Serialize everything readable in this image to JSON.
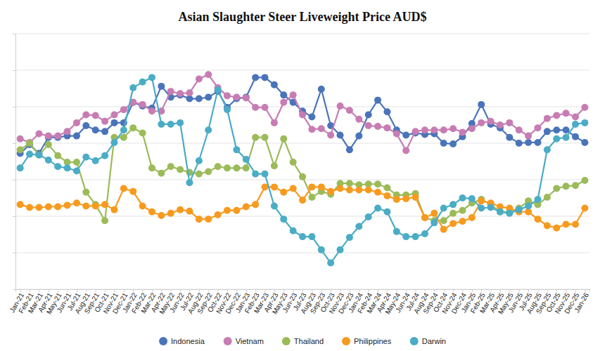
{
  "chart_data": {
    "type": "line",
    "title": "Asian Slaughter Steer Liveweight Price AUD$",
    "categories": [
      "Jan-21",
      "Feb-21",
      "Mar-21",
      "Apr-21",
      "May-21",
      "Jun-21",
      "Jul-21",
      "Aug-21",
      "Sep-21",
      "Oct-21",
      "Nov-21",
      "Dec-21",
      "Jan-22",
      "Feb-22",
      "Mar-22",
      "Apr-22",
      "May-22",
      "Jun-22",
      "Jul-22",
      "Aug-22",
      "Sep-22",
      "Oct-22",
      "Nov-22",
      "Dec-22",
      "Jan-23",
      "Feb-23",
      "Mar-23",
      "Apr-23",
      "May-23",
      "Jun-23",
      "Jul-23",
      "Aug-23",
      "Sep-23",
      "Oct-23",
      "Nov-23",
      "Dec-23",
      "Jan-24",
      "Feb-24",
      "Mar-24",
      "Apr-24",
      "May-24",
      "Jun-24",
      "Jul-24",
      "Aug-24",
      "Sep-24",
      "Oct-24",
      "Nov-24",
      "Dec-24",
      "Jan-25",
      "Feb-25",
      "Mar-25",
      "Apr-25",
      "May-25",
      "Jun-25",
      "Jul-25",
      "Aug-25",
      "Sep-25",
      "Oct-25",
      "Nov-25",
      "Dec-25",
      "Jan-26"
    ],
    "series": [
      {
        "name": "Indonesia",
        "color": "#4a74b9",
        "values": [
          3.86,
          3.98,
          3.86,
          4.08,
          4.08,
          4.1,
          4.1,
          4.24,
          4.18,
          4.16,
          4.28,
          4.28,
          4.56,
          4.51,
          4.48,
          4.78,
          4.63,
          4.66,
          4.61,
          4.61,
          4.63,
          4.71,
          4.49,
          4.61,
          4.63,
          4.9,
          4.9,
          4.8,
          4.66,
          4.56,
          4.44,
          4.36,
          4.74,
          4.24,
          4.11,
          3.91,
          4.1,
          4.39,
          4.59,
          4.43,
          4.18,
          4.11,
          4.14,
          4.12,
          4.13,
          4.0,
          3.99,
          4.09,
          4.27,
          4.53,
          4.26,
          4.21,
          4.08,
          4.0,
          4.01,
          4.01,
          4.16,
          4.18,
          4.18,
          4.09,
          4.01
        ]
      },
      {
        "name": "Vietnam",
        "color": "#c77cb3",
        "values": [
          4.06,
          4.01,
          4.13,
          4.1,
          4.1,
          4.16,
          4.28,
          4.39,
          4.38,
          4.3,
          4.39,
          4.46,
          4.56,
          4.53,
          4.44,
          4.44,
          4.71,
          4.68,
          4.69,
          4.88,
          4.94,
          4.76,
          4.65,
          4.63,
          4.62,
          4.49,
          4.49,
          4.28,
          4.56,
          4.66,
          4.39,
          4.19,
          4.2,
          4.11,
          4.51,
          4.45,
          4.33,
          4.24,
          4.23,
          4.21,
          4.13,
          3.9,
          4.16,
          4.18,
          4.18,
          4.18,
          4.2,
          4.15,
          4.2,
          4.28,
          4.3,
          4.25,
          4.28,
          4.18,
          4.1,
          4.21,
          4.34,
          4.38,
          4.41,
          4.36,
          4.49
        ]
      },
      {
        "name": "Thailand",
        "color": "#9bbb59",
        "values": [
          3.91,
          4.0,
          3.84,
          3.98,
          3.83,
          3.74,
          3.74,
          3.33,
          3.16,
          2.94,
          4.08,
          4.08,
          4.21,
          4.14,
          3.66,
          3.59,
          3.68,
          3.64,
          3.6,
          3.58,
          3.61,
          3.68,
          3.66,
          3.66,
          3.66,
          4.08,
          4.08,
          3.69,
          4.06,
          3.74,
          3.54,
          3.26,
          3.34,
          3.3,
          3.45,
          3.45,
          3.43,
          3.44,
          3.44,
          3.39,
          3.29,
          3.29,
          3.31,
          2.98,
          2.94,
          2.94,
          3.04,
          3.08,
          3.18,
          3.23,
          3.16,
          3.06,
          3.06,
          3.11,
          3.21,
          3.16,
          3.26,
          3.38,
          3.41,
          3.42,
          3.49
        ]
      },
      {
        "name": "Philippines",
        "color": "#f79a1e",
        "values": [
          3.16,
          3.12,
          3.12,
          3.13,
          3.13,
          3.15,
          3.18,
          3.14,
          3.14,
          3.16,
          3.09,
          3.38,
          3.34,
          3.14,
          3.06,
          3.01,
          3.04,
          3.09,
          3.07,
          2.96,
          2.96,
          3.02,
          3.08,
          3.08,
          3.13,
          3.16,
          3.4,
          3.4,
          3.33,
          3.38,
          3.22,
          3.4,
          3.4,
          3.34,
          3.38,
          3.36,
          3.36,
          3.36,
          3.33,
          3.28,
          3.23,
          3.24,
          3.26,
          2.98,
          3.04,
          2.82,
          2.9,
          2.93,
          2.98,
          3.21,
          3.18,
          3.13,
          3.11,
          3.06,
          3.06,
          2.96,
          2.87,
          2.84,
          2.89,
          2.89,
          3.11
        ]
      },
      {
        "name": "Darwin",
        "color": "#4bacc6",
        "values": [
          3.66,
          3.85,
          3.84,
          3.77,
          3.68,
          3.66,
          3.62,
          3.81,
          3.76,
          3.83,
          4.01,
          4.18,
          4.76,
          4.84,
          4.9,
          4.26,
          4.26,
          4.28,
          3.46,
          3.76,
          4.18,
          4.73,
          4.46,
          3.91,
          3.78,
          3.58,
          3.58,
          3.14,
          2.96,
          2.8,
          2.72,
          2.72,
          2.54,
          2.36,
          2.54,
          2.71,
          2.86,
          2.99,
          3.11,
          3.06,
          2.79,
          2.72,
          2.72,
          2.76,
          2.91,
          3.11,
          3.16,
          3.25,
          3.24,
          3.11,
          3.12,
          3.06,
          3.04,
          3.09,
          3.14,
          3.23,
          3.91,
          4.06,
          4.08,
          4.26,
          4.28
        ]
      }
    ],
    "ylim": [
      2.0,
      5.5
    ],
    "yticks": [
      2.0,
      2.5,
      3.0,
      3.5,
      4.0,
      4.5,
      5.0,
      5.5
    ],
    "grid": true,
    "tick_labels": "x",
    "legend": "bottom",
    "marker": "circle"
  }
}
